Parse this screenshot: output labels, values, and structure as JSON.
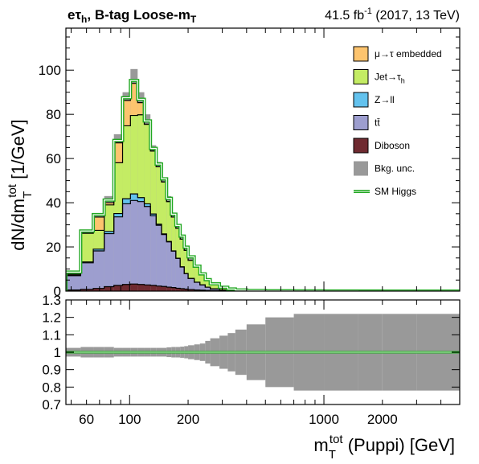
{
  "header": {
    "channel": "eτ",
    "channel_sub": "h",
    "category": ", B-tag Loose-m",
    "category_sub": "T",
    "lumi": "41.5 fb",
    "lumi_sup": "-1",
    "run": " (2017, 13 TeV)"
  },
  "axes": {
    "y_main": {
      "prefix": "dN/dm",
      "sup": "tot",
      "sub": "T",
      "suffix": " [1/GeV]"
    },
    "x": {
      "prefix": "m",
      "sup": "tot",
      "sub": "T",
      "suffix": " (Puppi) [GeV]"
    }
  },
  "colors": {
    "embedded": "#fdc46e",
    "jet": "#c4ec64",
    "zll": "#63c2ee",
    "ttbar": "#9d9ecf",
    "diboson": "#6f2a30",
    "unc": "#999999",
    "higgs": "#22a822"
  },
  "chart_data": {
    "type": "bar",
    "x_scale": "log",
    "xlim": [
      47,
      5000
    ],
    "ylim": [
      0,
      119
    ],
    "ratio_ylim": [
      0.7,
      1.3
    ],
    "x_ticks": [
      100,
      200,
      1000,
      2000
    ],
    "x_tick_labels": [
      "100",
      "200",
      "1000",
      "2000"
    ],
    "x_extra_tick": 60,
    "x_extra_tick_label": "60",
    "y_ticks": [
      0,
      20,
      40,
      60,
      80,
      100
    ],
    "ratio_ticks": [
      0.7,
      0.8,
      0.9,
      1.0,
      1.1,
      1.2,
      1.3
    ],
    "ratio_tick_labels": [
      "0.7",
      "0.8",
      "0.9",
      "1",
      "1.1",
      "1.2",
      "1.3"
    ],
    "bin_edges": [
      47,
      56,
      65,
      74,
      83,
      92,
      101,
      110,
      119,
      128,
      137,
      146,
      155,
      164,
      173,
      182,
      191,
      200,
      215,
      230,
      245,
      260,
      290,
      320,
      350,
      400,
      500,
      700,
      1000,
      1500,
      2000,
      3000,
      5000
    ],
    "series": [
      {
        "name": "Diboson",
        "key": "diboson",
        "values": [
          0.5,
          0.8,
          1.2,
          2.0,
          2.6,
          3.0,
          3.2,
          3.0,
          2.8,
          2.6,
          2.3,
          2.1,
          1.8,
          1.6,
          1.3,
          1.1,
          0.9,
          0.7,
          0.5,
          0.4,
          0.3,
          0.2,
          0.1,
          0.05,
          0.02,
          0.01,
          0,
          0,
          0,
          0,
          0,
          0
        ]
      },
      {
        "name": "tt̄",
        "key": "ttbar",
        "values": [
          6.5,
          12.0,
          17.0,
          24.0,
          31.0,
          36.5,
          37.8,
          37.5,
          35.5,
          31.5,
          27.5,
          23.5,
          20.5,
          16.5,
          13.5,
          9.8,
          7.0,
          5.0,
          3.5,
          2.4,
          1.5,
          0.8,
          0.35,
          0.15,
          0.05,
          0.02,
          0.01,
          0,
          0,
          0,
          0,
          0
        ]
      },
      {
        "name": "Z→ll",
        "key": "zll",
        "values": [
          0.1,
          0.4,
          0.8,
          1.0,
          1.5,
          2.3,
          3.0,
          1.8,
          1.2,
          0.8,
          0.5,
          0.3,
          0.2,
          0.1,
          0.1,
          0.1,
          0.05,
          0.05,
          0.02,
          0.01,
          0,
          0,
          0,
          0,
          0,
          0,
          0,
          0,
          0,
          0,
          0,
          0
        ]
      },
      {
        "name": "Jet→τh",
        "key": "jet",
        "values": [
          0.5,
          13.0,
          8.5,
          12.0,
          23.0,
          33.0,
          35.5,
          37.5,
          36.0,
          28.5,
          26.0,
          23.5,
          18.0,
          15.3,
          13.5,
          12.5,
          10.5,
          8.2,
          6.8,
          4.7,
          3.1,
          2.1,
          1.05,
          0.6,
          0.3,
          0.15,
          0.05,
          0.03,
          0.01,
          0,
          0,
          0
        ]
      },
      {
        "name": "μ→τ embedded",
        "key": "embedded",
        "values": [
          0,
          0,
          6.0,
          1.0,
          9.0,
          11.5,
          14.5,
          5.5,
          0,
          0,
          0,
          0,
          0,
          0,
          0,
          0,
          0,
          0,
          0,
          0,
          0,
          0,
          0,
          0,
          0,
          0,
          0,
          0,
          0,
          0,
          0,
          0
        ]
      }
    ],
    "unc_up": [
      8.6,
      27.0,
      35.0,
      43.0,
      71.0,
      90.0,
      100.5,
      90.0,
      80.0,
      66.0,
      58.5,
      51.5,
      43.0,
      35.5,
      30.0,
      25.5,
      20.5,
      15.2,
      11.6,
      8.0,
      5.3,
      3.3,
      1.6,
      0.85,
      0.4,
      0.2,
      0.07,
      0.04,
      0.02,
      0.01,
      0.005,
      0.002
    ],
    "higgs_total": [
      8.6,
      27.2,
      34.6,
      41.2,
      68.2,
      87.5,
      95.3,
      86.8,
      77.0,
      64.6,
      57.5,
      50.8,
      42.0,
      34.8,
      29.7,
      24.9,
      19.9,
      15.5,
      11.3,
      7.8,
      5.2,
      3.3,
      1.75,
      0.95,
      0.5,
      0.28,
      0.14,
      0.08,
      0.05,
      0.03,
      0.02,
      0.01
    ],
    "ratio_unc": [
      0.025,
      0.03,
      0.03,
      0.03,
      0.025,
      0.025,
      0.025,
      0.025,
      0.025,
      0.025,
      0.025,
      0.025,
      0.028,
      0.03,
      0.03,
      0.032,
      0.035,
      0.04,
      0.045,
      0.05,
      0.065,
      0.08,
      0.095,
      0.11,
      0.13,
      0.16,
      0.2,
      0.22,
      0.22,
      0.22,
      0.22,
      0.22
    ],
    "ratio_line": 1.0,
    "legend": [
      {
        "label": "μ→τ embedded",
        "key": "embedded",
        "kind": "box"
      },
      {
        "label": "Jet→τ",
        "sub": "h",
        "key": "jet",
        "kind": "box"
      },
      {
        "label": "Z→ll",
        "key": "zll",
        "kind": "box"
      },
      {
        "label": "tt̄",
        "key": "ttbar",
        "kind": "box"
      },
      {
        "label": "Diboson",
        "key": "diboson",
        "kind": "box"
      },
      {
        "label": "Bkg. unc.",
        "key": "unc",
        "kind": "box"
      },
      {
        "label": "SM Higgs",
        "key": "higgs",
        "kind": "line"
      }
    ],
    "legend_position": "top-right"
  }
}
